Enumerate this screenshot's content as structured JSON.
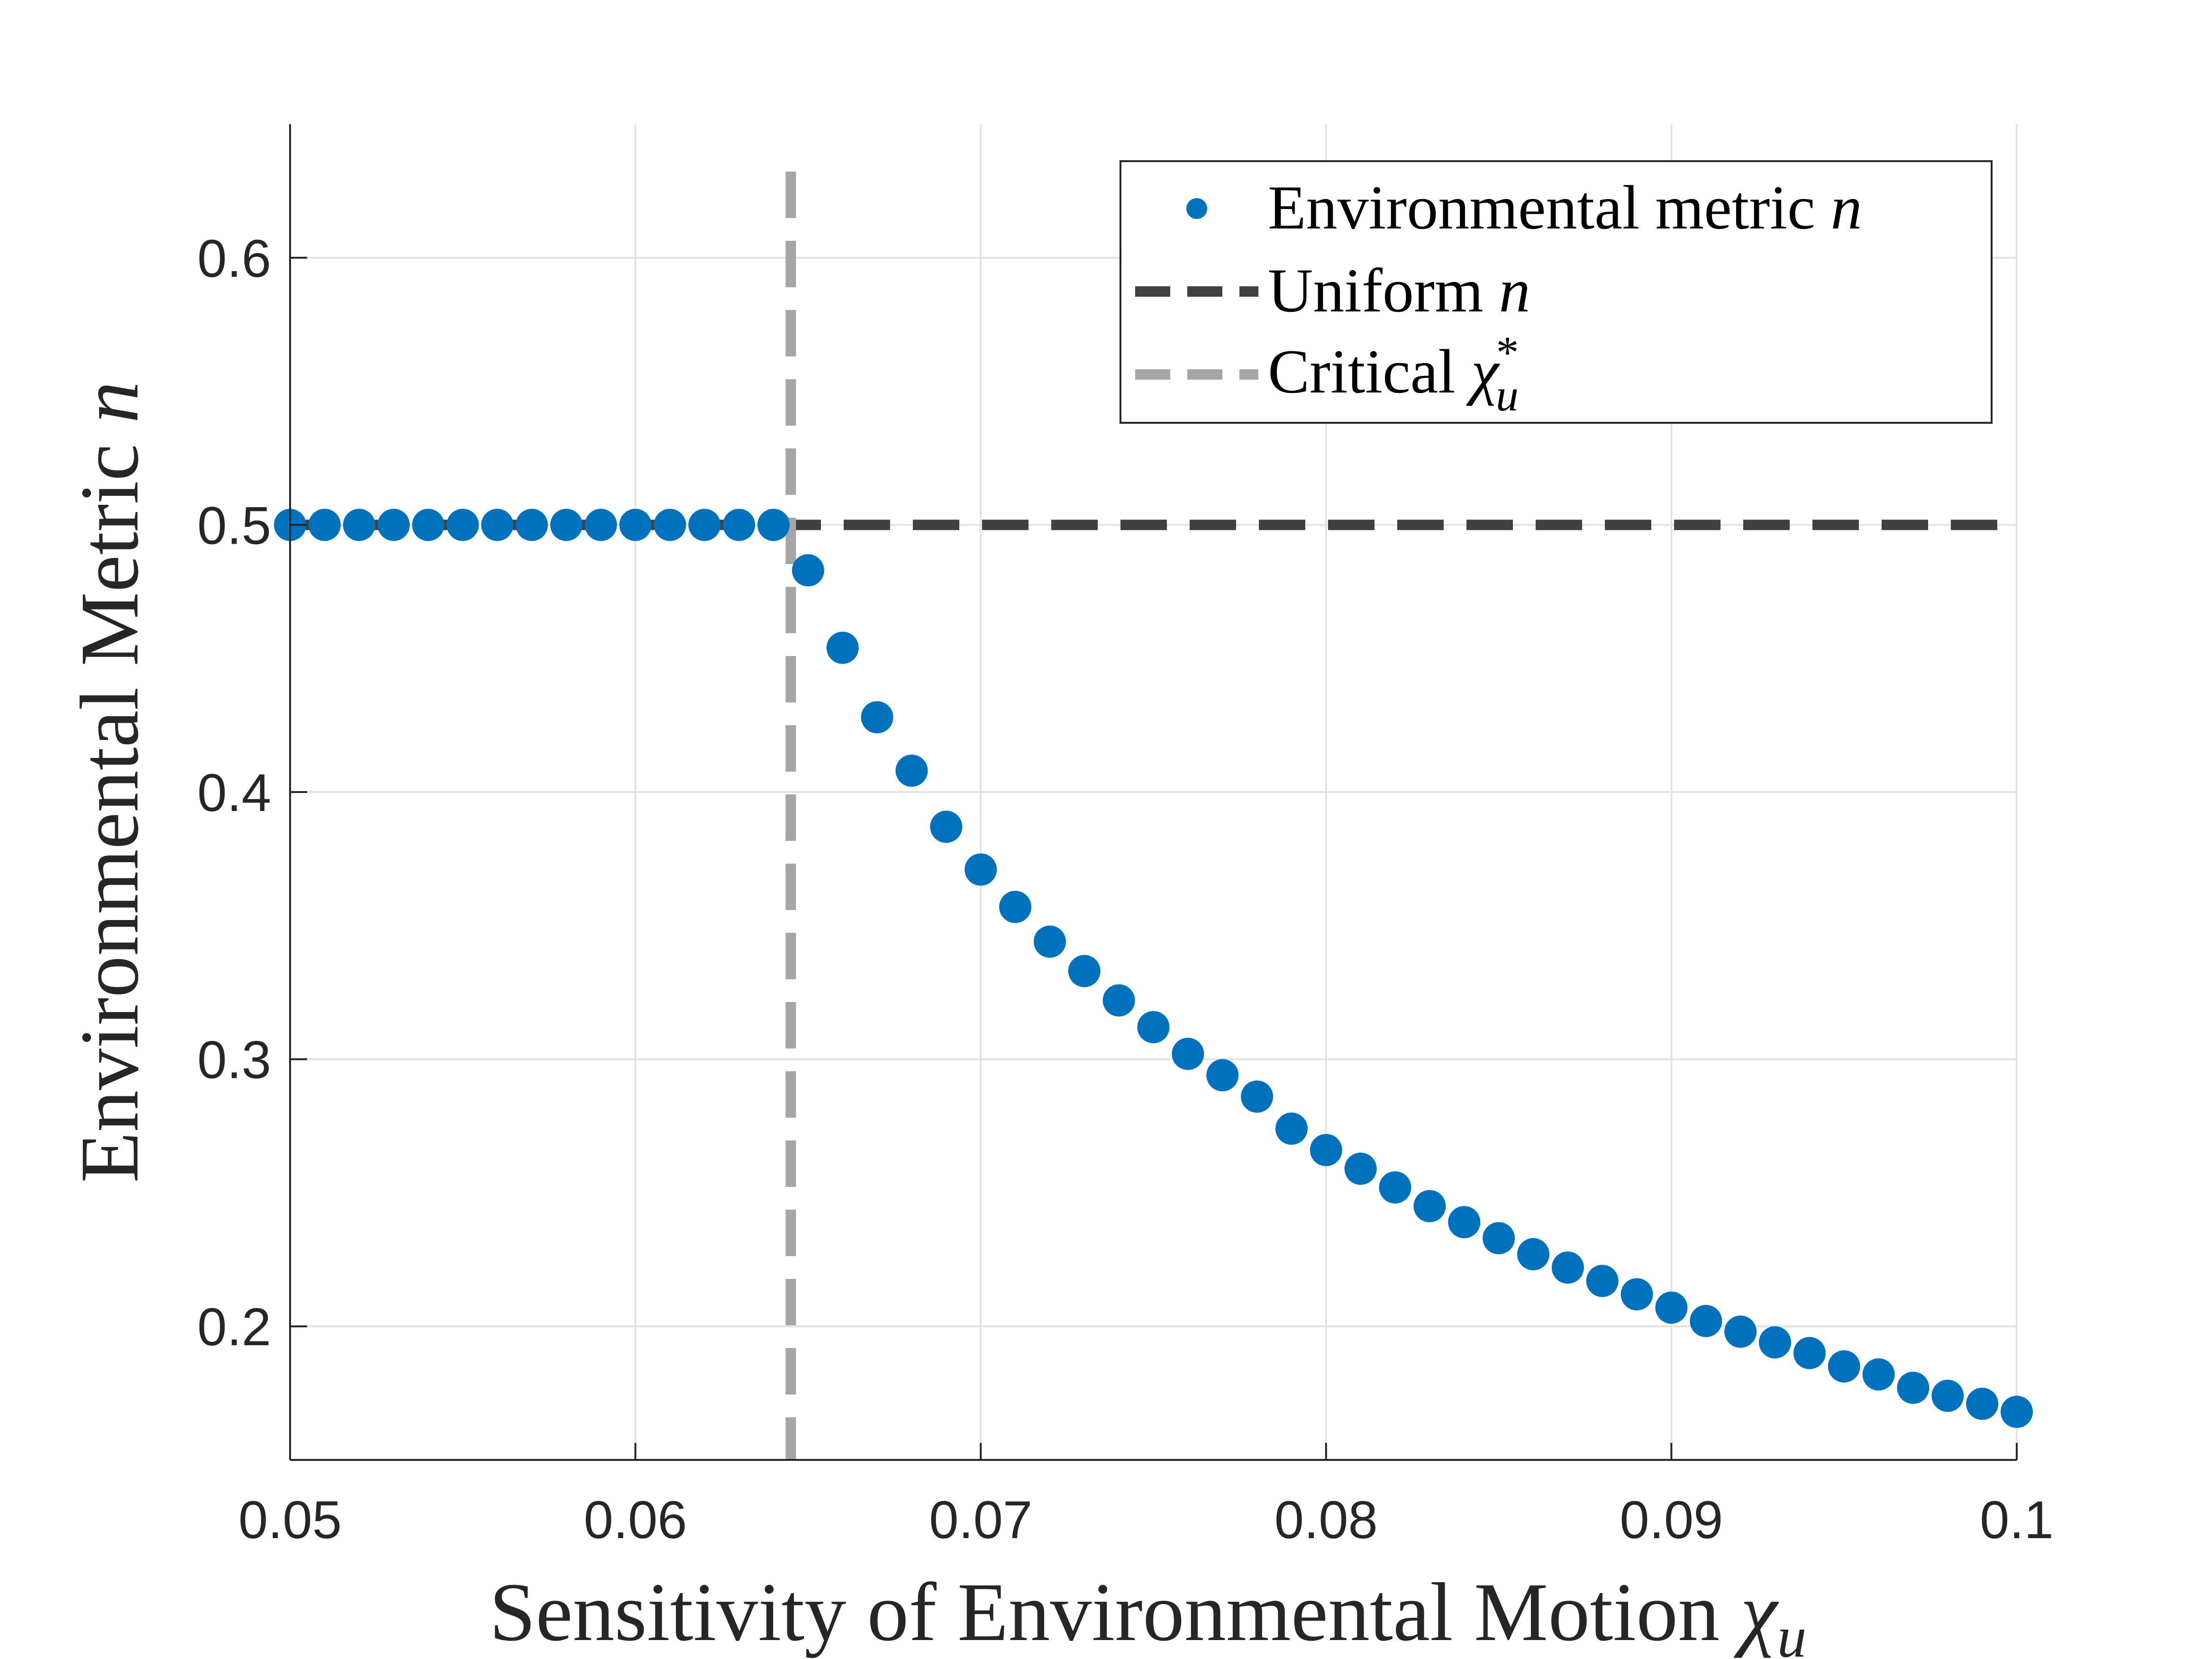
{
  "chart_data": {
    "type": "scatter",
    "title": "",
    "xlabel": "Sensitivity of Environmental Motion",
    "xlabel_symbol": "χ",
    "xlabel_subscript": "u",
    "ylabel": "Environmental Metric",
    "ylabel_symbol": "n",
    "xlim": [
      0.05,
      0.1
    ],
    "ylim": [
      0.15,
      0.65
    ],
    "xticks": [
      0.05,
      0.06,
      0.07,
      0.08,
      0.09,
      0.1
    ],
    "xtick_labels": [
      "0.05",
      "0.06",
      "0.07",
      "0.08",
      "0.09",
      "0.1"
    ],
    "yticks": [
      0.2,
      0.3,
      0.4,
      0.5,
      0.6
    ],
    "ytick_labels": [
      "0.2",
      "0.3",
      "0.4",
      "0.5",
      "0.6"
    ],
    "grid": true,
    "legend_position": "top-right",
    "series": [
      {
        "name": "Environmental metric",
        "name_symbol": "n",
        "kind": "scatter",
        "color": "#0072BD",
        "x": [
          0.05,
          0.051,
          0.052,
          0.053,
          0.054,
          0.055,
          0.056,
          0.057,
          0.058,
          0.059,
          0.06,
          0.061,
          0.062,
          0.063,
          0.064,
          0.065,
          0.066,
          0.067,
          0.068,
          0.069,
          0.07,
          0.071,
          0.072,
          0.073,
          0.074,
          0.075,
          0.076,
          0.077,
          0.078,
          0.079,
          0.08,
          0.081,
          0.082,
          0.083,
          0.084,
          0.085,
          0.086,
          0.087,
          0.088,
          0.089,
          0.09,
          0.091,
          0.092,
          0.093,
          0.094,
          0.095,
          0.096,
          0.097,
          0.098,
          0.099,
          0.1
        ],
        "y": [
          0.5,
          0.5,
          0.5,
          0.5,
          0.5,
          0.5,
          0.5,
          0.5,
          0.5,
          0.5,
          0.5,
          0.5,
          0.5,
          0.5,
          0.5,
          0.483,
          0.454,
          0.428,
          0.408,
          0.387,
          0.371,
          0.357,
          0.344,
          0.333,
          0.322,
          0.312,
          0.302,
          0.294,
          0.286,
          0.274,
          0.266,
          0.259,
          0.252,
          0.245,
          0.239,
          0.233,
          0.227,
          0.222,
          0.217,
          0.212,
          0.207,
          0.202,
          0.198,
          0.194,
          0.19,
          0.185,
          0.182,
          0.177,
          0.174,
          0.171,
          0.168
        ]
      },
      {
        "name": "Uniform",
        "name_symbol": "n",
        "kind": "hline",
        "y": 0.5,
        "color": "#404040"
      },
      {
        "name": "Critical",
        "name_symbol": "χ",
        "name_subscript": "u",
        "name_superscript": "*",
        "kind": "vline",
        "x": 0.0645,
        "color": "#A6A6A6"
      }
    ]
  }
}
